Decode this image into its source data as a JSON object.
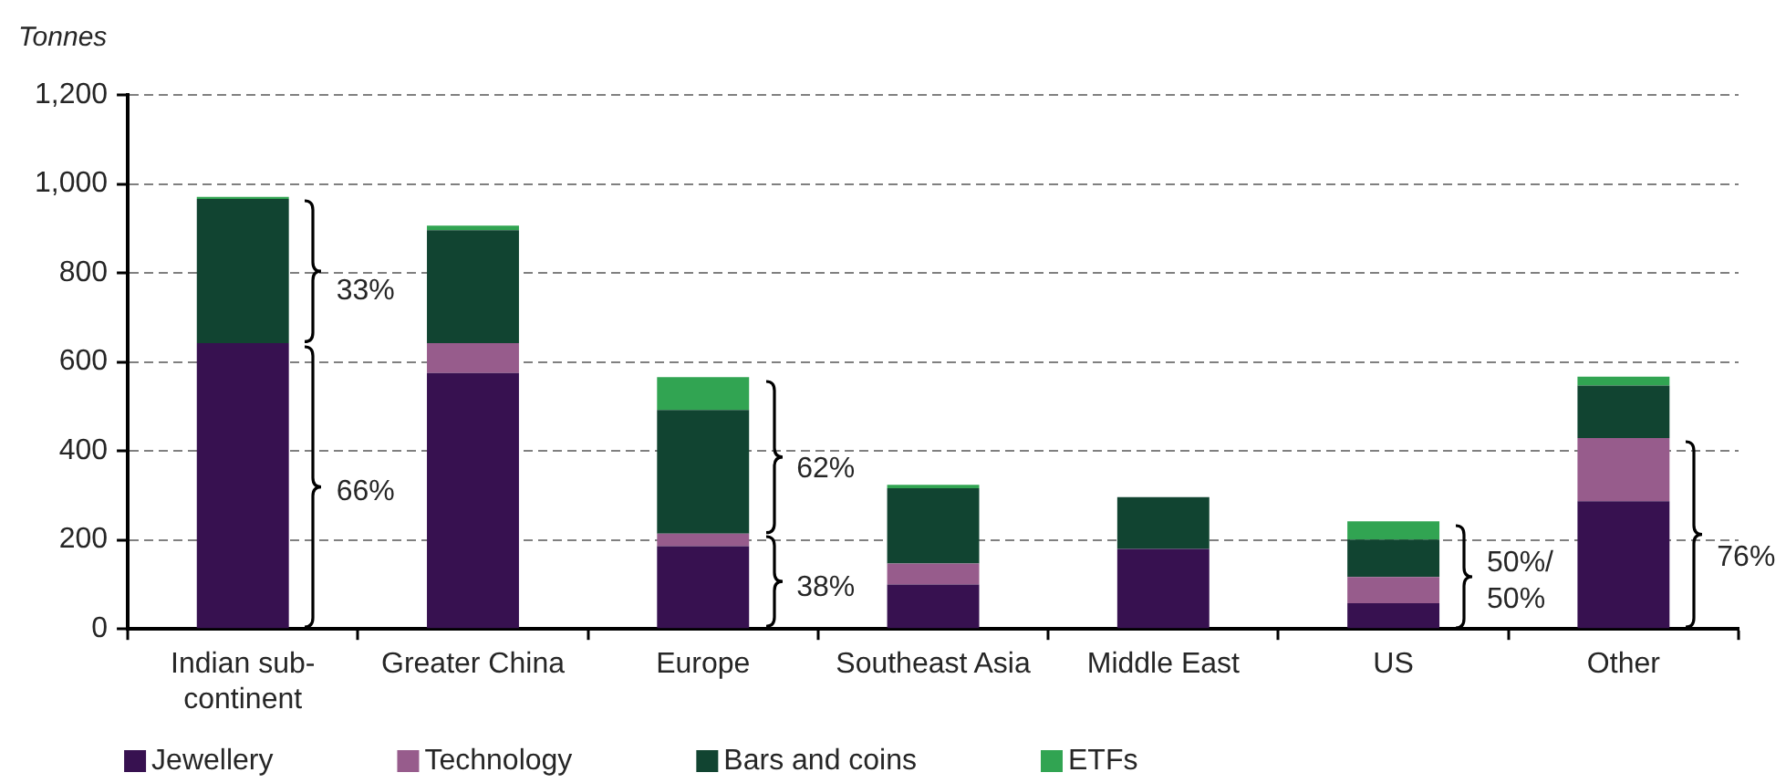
{
  "chart_data": {
    "type": "bar",
    "ylabel": "Tonnes",
    "categories": [
      "Indian sub-continent",
      "Greater China",
      "Europe",
      "Southeast Asia",
      "Middle East",
      "US",
      "Other"
    ],
    "series": [
      {
        "name": "Jewellery",
        "color": "#371150",
        "values": [
          642,
          575,
          186,
          100,
          180,
          58,
          287
        ]
      },
      {
        "name": "Technology",
        "color": "#975c8c",
        "values": [
          0,
          67,
          28,
          47,
          0,
          59,
          142
        ]
      },
      {
        "name": "Bars and coins",
        "color": "#114431",
        "values": [
          324,
          254,
          278,
          169,
          116,
          84,
          118
        ]
      },
      {
        "name": "ETFs",
        "color": "#31a452",
        "values": [
          5,
          10,
          74,
          8,
          0,
          41,
          20
        ]
      }
    ],
    "stacked": true,
    "ylim": [
      0,
      1200
    ],
    "yticks": [
      0,
      200,
      400,
      600,
      800,
      {
        "value": 1000,
        "label": "1,000"
      },
      {
        "value": 1200,
        "label": "1,200"
      }
    ],
    "grid": "y",
    "legend": "bottom",
    "annotations": [
      "33%",
      "66%",
      "62%",
      "38%",
      "50%/ 50%",
      "76%"
    ]
  }
}
